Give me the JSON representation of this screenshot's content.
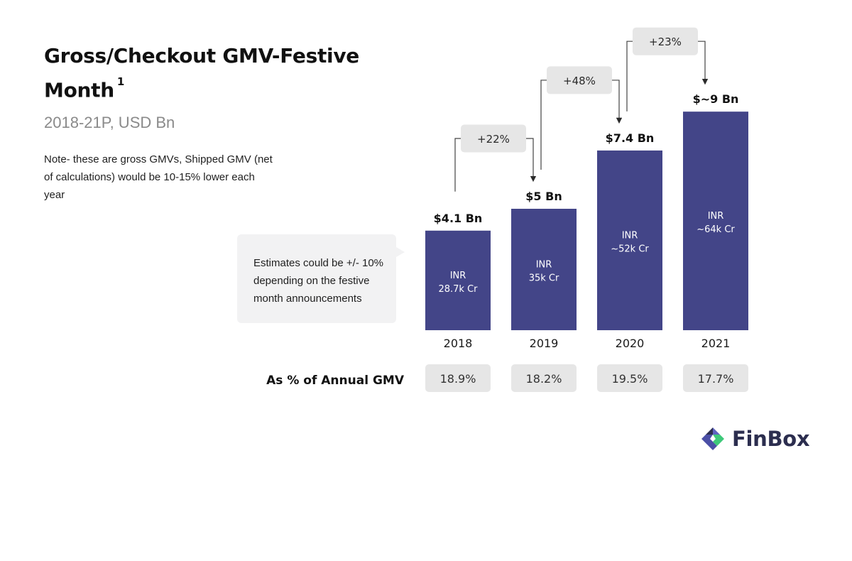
{
  "title": "Gross/Checkout GMV-Festive Month",
  "title_superscript": "1",
  "subtitle": "2018-21P, USD Bn",
  "note": "Note- these are gross GMVs, Shipped GMV (net of calculations) would be 10-15% lower each year",
  "callout": "Estimates could be +/- 10% depending on the festive month announcements",
  "row_label": "As % of Annual GMV",
  "brand": {
    "name": "FinBox",
    "icon": "finbox-logo-icon",
    "colors": {
      "dark": "#2c2e4f",
      "green": "#3ec97a",
      "purple": "#4b4fa6"
    }
  },
  "colors": {
    "bar": "#434588",
    "box": "#e6e6e6",
    "callout": "#f2f2f3"
  },
  "chart_data": {
    "type": "bar",
    "categories": [
      "2018",
      "2019",
      "2020",
      "2021"
    ],
    "values": [
      4.1,
      5,
      7.4,
      9
    ],
    "ylim": [
      0,
      10
    ],
    "value_labels": [
      "$4.1 Bn",
      "$5 Bn",
      "$7.4 Bn",
      "$~9 Bn"
    ],
    "inr_labels": [
      [
        "INR",
        "28.7k Cr"
      ],
      [
        "INR",
        "35k Cr"
      ],
      [
        "INR",
        "~52k Cr"
      ],
      [
        "INR",
        "~64k Cr"
      ]
    ],
    "growth": [
      {
        "from": "2018",
        "to": "2019",
        "label": "+22%"
      },
      {
        "from": "2019",
        "to": "2020",
        "label": "+48%"
      },
      {
        "from": "2020",
        "to": "2021",
        "label": "+23%"
      }
    ],
    "annual_share": [
      "18.9%",
      "18.2%",
      "19.5%",
      "17.7%"
    ]
  }
}
